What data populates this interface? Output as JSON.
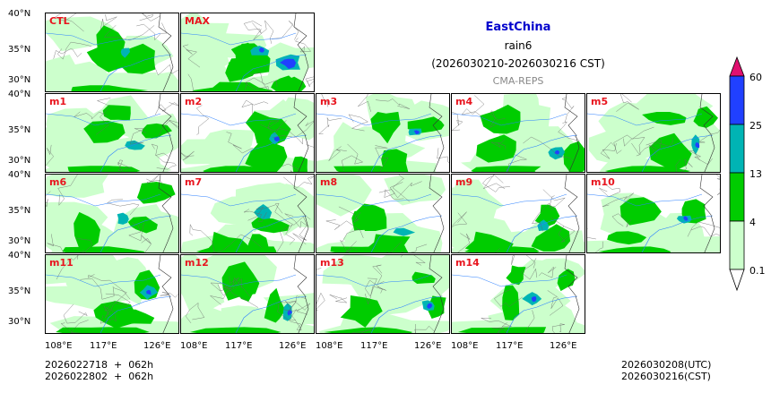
{
  "title": {
    "region": "EastChina",
    "variable": "rain6",
    "period": "(2026030210-2026030216 CST)",
    "model": "CMA-REPS"
  },
  "panels": [
    {
      "label": "CTL"
    },
    {
      "label": "MAX"
    },
    {
      "label": "m1"
    },
    {
      "label": "m2"
    },
    {
      "label": "m3"
    },
    {
      "label": "m4"
    },
    {
      "label": "m5"
    },
    {
      "label": "m6"
    },
    {
      "label": "m7"
    },
    {
      "label": "m8"
    },
    {
      "label": "m9"
    },
    {
      "label": "m10"
    },
    {
      "label": "m11"
    },
    {
      "label": "m12"
    },
    {
      "label": "m13"
    },
    {
      "label": "m14"
    }
  ],
  "axes": {
    "lat_labels": [
      "40°N",
      "35°N",
      "30°N"
    ],
    "lon_labels": [
      "108°E",
      "117°E",
      "126°E"
    ]
  },
  "colorbar": {
    "levels": [
      "0.1",
      "4",
      "13",
      "25",
      "60"
    ],
    "colors": [
      "#ccffcc",
      "#00cc00",
      "#00b4b4",
      "#2040ff",
      "#e01070"
    ]
  },
  "footer": {
    "init_line1": "2026022718  +  062h",
    "init_line2": "2026022802  +  062h",
    "valid_line1": "2026030208(UTC)",
    "valid_line2": "2026030216(CST)"
  }
}
